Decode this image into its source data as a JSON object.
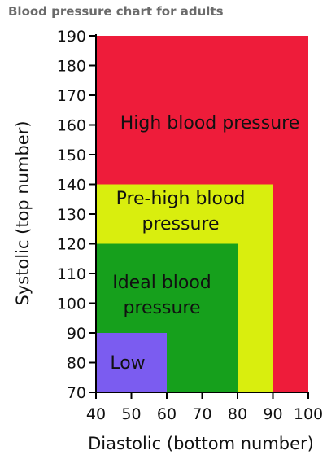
{
  "chart_data": {
    "type": "area",
    "title": "Blood pressure chart for adults",
    "xlabel": "Diastolic (bottom number)",
    "ylabel": "Systolic (top number)",
    "xlim": [
      40,
      100
    ],
    "ylim": [
      70,
      190
    ],
    "xticks": [
      40,
      50,
      60,
      70,
      80,
      90,
      100
    ],
    "yticks": [
      70,
      80,
      90,
      100,
      110,
      120,
      130,
      140,
      150,
      160,
      170,
      180,
      190
    ],
    "grid": false,
    "zones": [
      {
        "name": "High blood pressure",
        "label_lines": [
          "High blood pressure"
        ],
        "x_max": 100,
        "y_max": 190,
        "color": "#ee1c3a"
      },
      {
        "name": "Pre-high blood pressure",
        "label_lines": [
          "Pre-high blood",
          "pressure"
        ],
        "x_max": 90,
        "y_max": 140,
        "color": "#d9ee0e"
      },
      {
        "name": "Ideal blood pressure",
        "label_lines": [
          "Ideal blood",
          "pressure"
        ],
        "x_max": 80,
        "y_max": 120,
        "color": "#16a01c"
      },
      {
        "name": "Low",
        "label_lines": [
          "Low"
        ],
        "x_max": 60,
        "y_max": 90,
        "color": "#7b5cf0"
      }
    ]
  }
}
